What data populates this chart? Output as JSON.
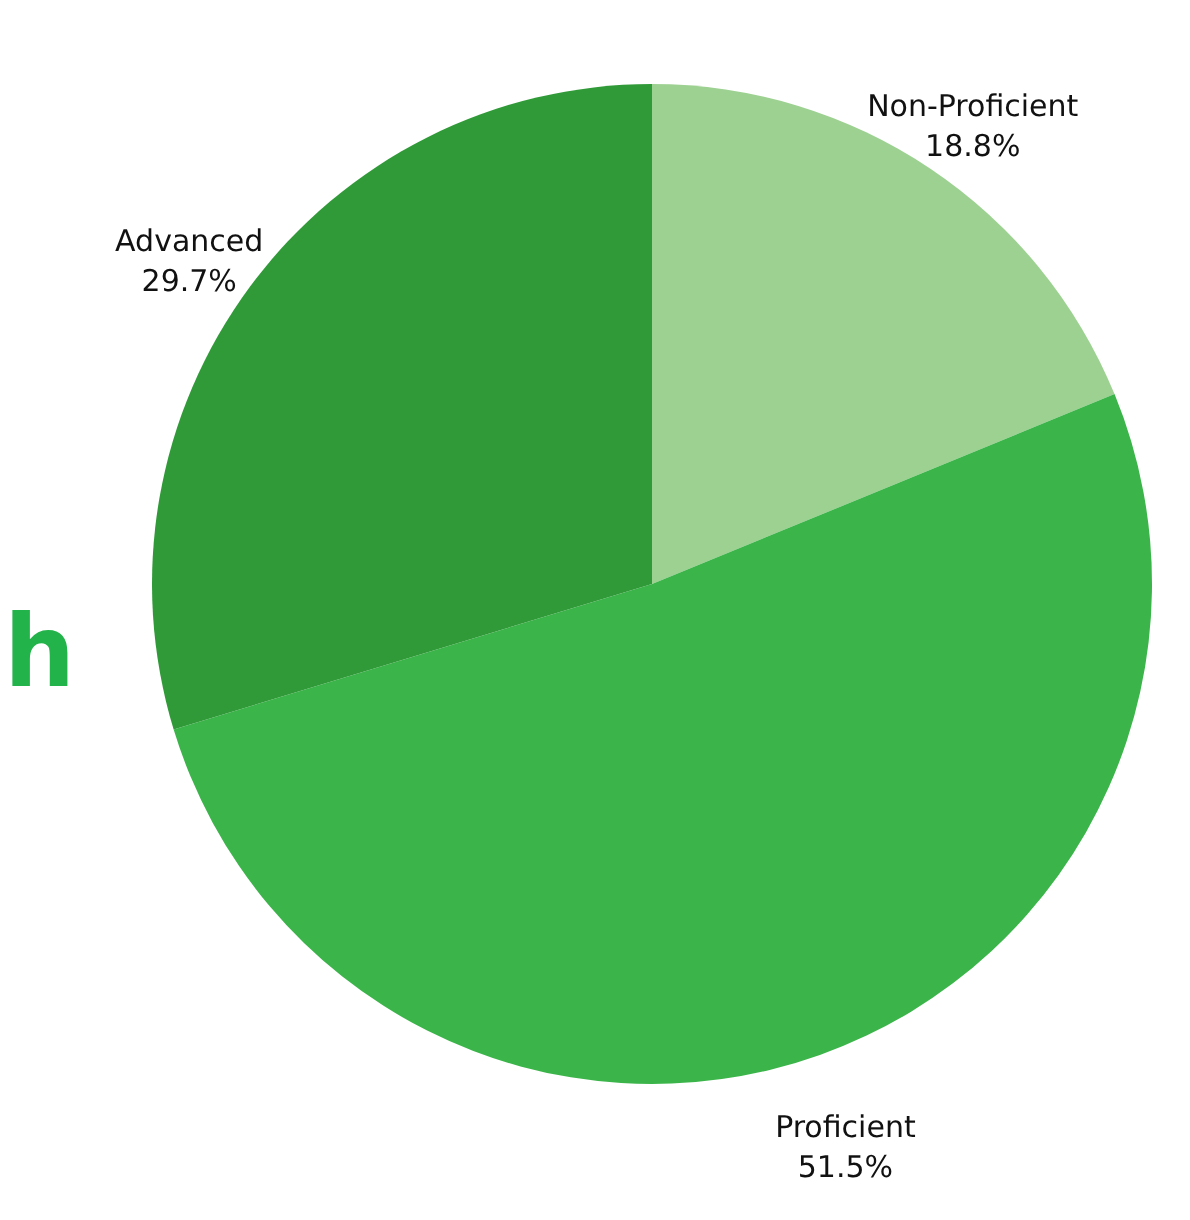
{
  "chart_data": {
    "type": "pie",
    "categories": [
      "Non-Proficient",
      "Proficient",
      "Advanced"
    ],
    "values": [
      18.8,
      51.5,
      29.7
    ],
    "value_labels": [
      "18.8%",
      "51.5%",
      "29.7%"
    ],
    "colors": [
      "#9dd192",
      "#3bb54a",
      "#2f9a37"
    ],
    "annotations": [
      "h"
    ]
  }
}
